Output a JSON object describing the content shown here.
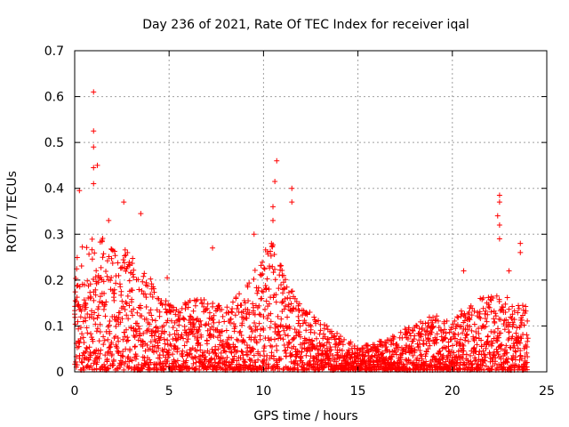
{
  "chart_data": {
    "type": "scatter",
    "title": "Day 236 of 2021, Rate Of TEC Index for receiver iqal",
    "xlabel": "GPS time / hours",
    "ylabel": "ROTI / TECUs",
    "xlim": [
      0,
      25
    ],
    "ylim": [
      0,
      0.7
    ],
    "x_ticks": [
      0,
      5,
      10,
      15,
      20,
      25
    ],
    "y_ticks": [
      0,
      0.1,
      0.2,
      0.3,
      0.4,
      0.5,
      0.6,
      0.7
    ],
    "x_tick_labels": [
      "0",
      "5",
      "10",
      "15",
      "20",
      "25"
    ],
    "y_tick_labels": [
      "0",
      "0.1",
      "0.2",
      "0.3",
      "0.4",
      "0.5",
      "0.6",
      "0.7"
    ],
    "grid": true,
    "marker": "+",
    "color": "#ff0000",
    "series": [
      {
        "name": "ROTI",
        "envelope": {
          "hours": [
            0,
            1,
            2,
            3,
            4,
            5,
            6,
            7,
            8,
            9,
            10,
            10.5,
            11,
            12,
            13,
            14,
            15,
            16,
            17,
            18,
            19,
            20,
            21,
            22,
            23,
            24
          ],
          "upper_roti": [
            0.25,
            0.3,
            0.28,
            0.26,
            0.2,
            0.15,
            0.15,
            0.16,
            0.14,
            0.18,
            0.26,
            0.29,
            0.22,
            0.14,
            0.11,
            0.08,
            0.05,
            0.06,
            0.08,
            0.1,
            0.12,
            0.11,
            0.15,
            0.17,
            0.16,
            0.14
          ]
        },
        "outliers": [
          {
            "x": 1.0,
            "y": 0.61
          },
          {
            "x": 1.0,
            "y": 0.525
          },
          {
            "x": 1.0,
            "y": 0.49
          },
          {
            "x": 1.0,
            "y": 0.445
          },
          {
            "x": 1.2,
            "y": 0.45
          },
          {
            "x": 1.0,
            "y": 0.41
          },
          {
            "x": 0.25,
            "y": 0.395
          },
          {
            "x": 2.6,
            "y": 0.37
          },
          {
            "x": 3.5,
            "y": 0.345
          },
          {
            "x": 1.8,
            "y": 0.33
          },
          {
            "x": 10.7,
            "y": 0.46
          },
          {
            "x": 10.6,
            "y": 0.415
          },
          {
            "x": 11.5,
            "y": 0.4
          },
          {
            "x": 11.5,
            "y": 0.37
          },
          {
            "x": 10.5,
            "y": 0.36
          },
          {
            "x": 10.5,
            "y": 0.33
          },
          {
            "x": 9.5,
            "y": 0.3
          },
          {
            "x": 7.3,
            "y": 0.27
          },
          {
            "x": 22.5,
            "y": 0.385
          },
          {
            "x": 22.5,
            "y": 0.37
          },
          {
            "x": 22.4,
            "y": 0.34
          },
          {
            "x": 22.5,
            "y": 0.32
          },
          {
            "x": 22.5,
            "y": 0.29
          },
          {
            "x": 23.6,
            "y": 0.28
          },
          {
            "x": 23.6,
            "y": 0.26
          },
          {
            "x": 20.6,
            "y": 0.22
          },
          {
            "x": 23.0,
            "y": 0.22
          },
          {
            "x": 4.9,
            "y": 0.205
          }
        ]
      }
    ]
  }
}
